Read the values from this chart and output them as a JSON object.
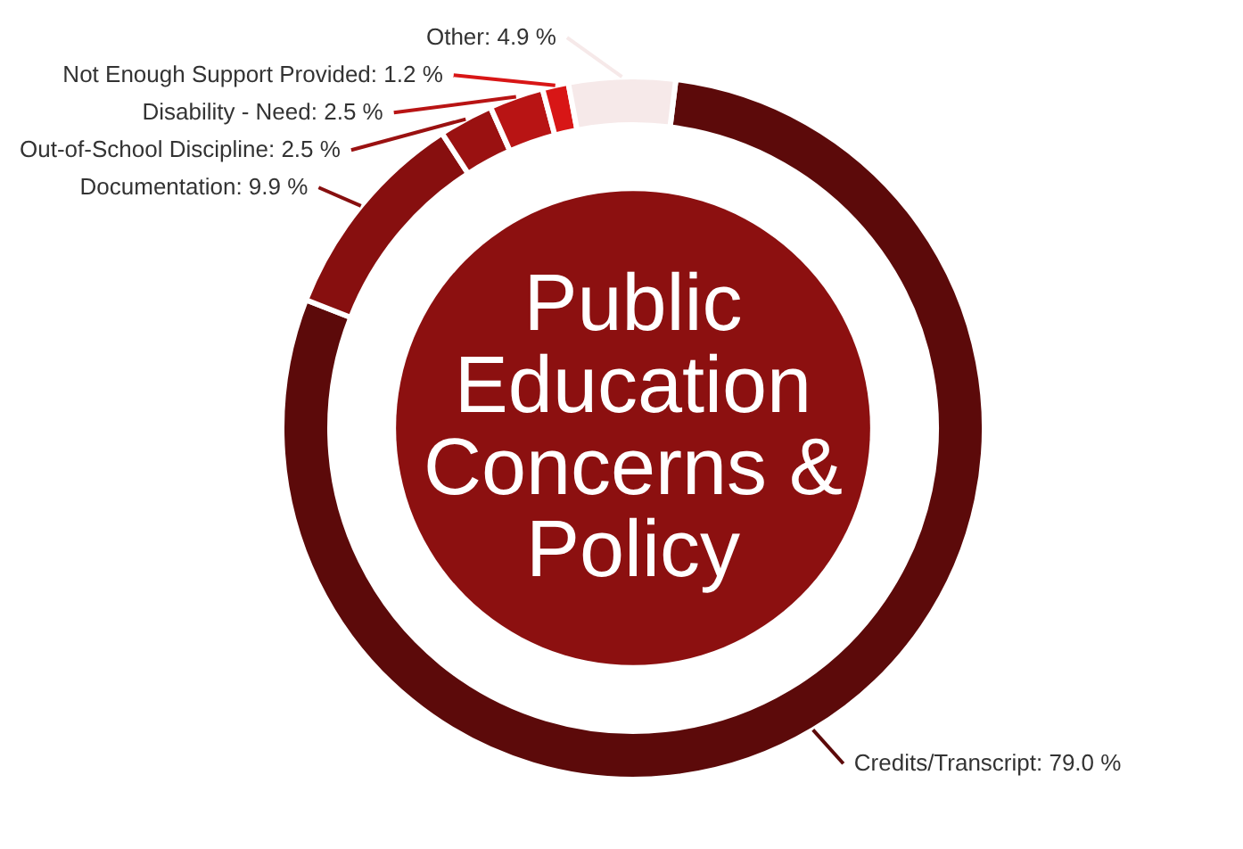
{
  "chart_data": {
    "type": "donut",
    "title": "Public Education Concerns & Policy",
    "categories": [
      "Credits/Transcript",
      "Documentation",
      "Out-of-School Discipline",
      "Disability - Need",
      "Not Enough Support Provided",
      "Other"
    ],
    "values": [
      79.0,
      9.9,
      2.5,
      2.5,
      1.2,
      4.9
    ],
    "value_labels": [
      "79.0 %",
      "9.9 %",
      "2.5 %",
      "2.5 %",
      "1.2 %",
      "4.9 %"
    ],
    "colors": [
      "#5c0a0a",
      "#870f0f",
      "#9a1111",
      "#b81414",
      "#d81616",
      "#f6e9e9"
    ]
  }
}
